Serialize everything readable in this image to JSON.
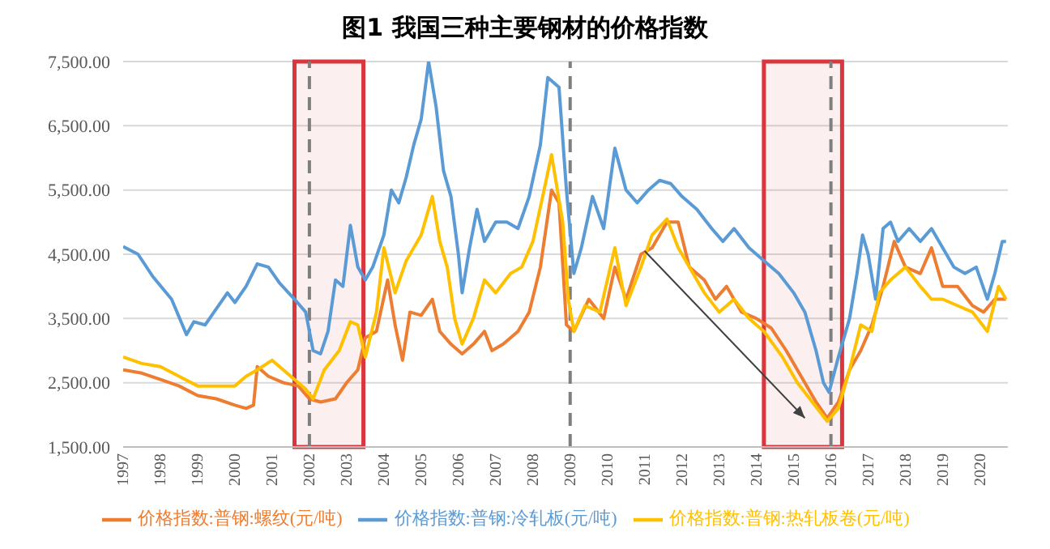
{
  "chart_data": {
    "type": "line",
    "title": "图1  我国三种主要钢材的价格指数",
    "xlim": [
      1997,
      2020.75
    ],
    "xticks": [
      1997,
      1998,
      1999,
      2000,
      2001,
      2002,
      2003,
      2004,
      2005,
      2006,
      2007,
      2008,
      2009,
      2010,
      2011,
      2012,
      2013,
      2014,
      2015,
      2016,
      2017,
      2018,
      2019,
      2020
    ],
    "ylim": [
      1500,
      7500
    ],
    "yticks": [
      {
        "value": 1500,
        "label": "1,500.00"
      },
      {
        "value": 2500,
        "label": "2,500.00"
      },
      {
        "value": 3500,
        "label": "3,500.00"
      },
      {
        "value": 4500,
        "label": "4,500.00"
      },
      {
        "value": 5500,
        "label": "5,500.00"
      },
      {
        "value": 6500,
        "label": "6,500.00"
      },
      {
        "value": 7500,
        "label": "7,500.00"
      }
    ],
    "grid": "y",
    "legend": "bottom",
    "marker": "none",
    "line_style": "solid",
    "series": [
      {
        "name": "价格指数:普钢:螺纹(元/吨)",
        "color": "#ed7d31",
        "x": [
          1997.0,
          1997.5,
          1998,
          1998.5,
          1999,
          1999.5,
          2000,
          2000.3,
          2000.5,
          2000.6,
          2000.9,
          2001.3,
          2001.7,
          2002.0,
          2002.3,
          2002.7,
          2003.0,
          2003.3,
          2003.5,
          2003.8,
          2004.1,
          2004.3,
          2004.5,
          2004.7,
          2005.0,
          2005.3,
          2005.5,
          2005.8,
          2006.1,
          2006.4,
          2006.7,
          2006.9,
          2007.2,
          2007.6,
          2007.9,
          2008.2,
          2008.5,
          2008.7,
          2008.9,
          2009.1,
          2009.5,
          2009.9,
          2010.2,
          2010.5,
          2010.9,
          2011.2,
          2011.6,
          2011.9,
          2012.2,
          2012.6,
          2012.9,
          2013.2,
          2013.6,
          2014.0,
          2014.4,
          2014.8,
          2015.2,
          2015.6,
          2015.9,
          2016.2,
          2016.5,
          2016.8,
          2017.1,
          2017.4,
          2017.7,
          2018.0,
          2018.4,
          2018.7,
          2019.0,
          2019.4,
          2019.8,
          2020.1,
          2020.4,
          2020.7
        ],
        "values": [
          2700,
          2650,
          2550,
          2450,
          2300,
          2250,
          2150,
          2100,
          2150,
          2750,
          2600,
          2500,
          2450,
          2250,
          2200,
          2250,
          2500,
          2700,
          3200,
          3300,
          4100,
          3400,
          2850,
          3600,
          3550,
          3800,
          3300,
          3100,
          2950,
          3100,
          3300,
          3000,
          3100,
          3300,
          3600,
          4300,
          5500,
          5300,
          3400,
          3300,
          3800,
          3500,
          4300,
          3800,
          4500,
          4600,
          5000,
          5000,
          4300,
          4100,
          3800,
          4000,
          3600,
          3500,
          3350,
          3000,
          2600,
          2200,
          1950,
          2200,
          2700,
          3000,
          3400,
          4000,
          4700,
          4300,
          4200,
          4600,
          4000,
          4000,
          3700,
          3600,
          3800,
          3800
        ]
      },
      {
        "name": "价格指数:普钢:冷轧板(元/吨)",
        "color": "#5b9bd5",
        "x": [
          1997.0,
          1997.4,
          1997.8,
          1998.3,
          1998.7,
          1998.9,
          1999.2,
          1999.5,
          1999.8,
          2000.0,
          2000.3,
          2000.6,
          2000.9,
          2001.2,
          2001.6,
          2001.9,
          2002.1,
          2002.3,
          2002.5,
          2002.7,
          2002.9,
          2003.1,
          2003.3,
          2003.5,
          2003.7,
          2004.0,
          2004.2,
          2004.4,
          2004.6,
          2004.8,
          2005.0,
          2005.2,
          2005.4,
          2005.6,
          2005.8,
          2006.0,
          2006.1,
          2006.3,
          2006.5,
          2006.7,
          2007.0,
          2007.3,
          2007.6,
          2007.9,
          2008.2,
          2008.4,
          2008.7,
          2008.9,
          2009.1,
          2009.3,
          2009.6,
          2009.9,
          2010.2,
          2010.5,
          2010.8,
          2011.1,
          2011.4,
          2011.7,
          2012.0,
          2012.4,
          2012.8,
          2013.1,
          2013.4,
          2013.8,
          2014.2,
          2014.6,
          2015.0,
          2015.3,
          2015.6,
          2015.8,
          2015.95,
          2016.2,
          2016.5,
          2016.7,
          2016.85,
          2017.0,
          2017.2,
          2017.4,
          2017.6,
          2017.8,
          2018.1,
          2018.4,
          2018.7,
          2019.0,
          2019.3,
          2019.6,
          2019.9,
          2020.2,
          2020.4,
          2020.6,
          2020.7
        ],
        "values": [
          4620,
          4500,
          4150,
          3800,
          3250,
          3450,
          3400,
          3650,
          3900,
          3750,
          4000,
          4350,
          4300,
          4050,
          3800,
          3600,
          3000,
          2950,
          3300,
          4100,
          4000,
          4950,
          4300,
          4100,
          4300,
          4800,
          5500,
          5300,
          5700,
          6200,
          6600,
          7500,
          6800,
          5800,
          5400,
          4500,
          3900,
          4600,
          5200,
          4700,
          5000,
          5000,
          4900,
          5400,
          6200,
          7250,
          7100,
          5500,
          4200,
          4600,
          5400,
          4900,
          6150,
          5500,
          5300,
          5500,
          5650,
          5600,
          5400,
          5200,
          4900,
          4700,
          4900,
          4600,
          4400,
          4200,
          3900,
          3600,
          3000,
          2500,
          2350,
          2900,
          3500,
          4200,
          4800,
          4500,
          3800,
          4900,
          5000,
          4700,
          4900,
          4700,
          4900,
          4600,
          4300,
          4200,
          4300,
          3800,
          4200,
          4700,
          4700
        ]
      },
      {
        "name": "价格指数:普钢:热轧板卷(元/吨)",
        "color": "#ffc000",
        "x": [
          1997.0,
          1997.5,
          1998,
          1998.5,
          1999,
          1999.5,
          2000,
          2000.3,
          2000.6,
          2001.0,
          2001.5,
          2001.9,
          2002.1,
          2002.4,
          2002.8,
          2003.1,
          2003.3,
          2003.5,
          2003.8,
          2004.0,
          2004.3,
          2004.6,
          2005.0,
          2005.3,
          2005.5,
          2005.7,
          2005.9,
          2006.1,
          2006.4,
          2006.7,
          2007.0,
          2007.4,
          2007.7,
          2008.0,
          2008.3,
          2008.5,
          2008.8,
          2008.95,
          2009.1,
          2009.4,
          2009.8,
          2010.2,
          2010.5,
          2010.9,
          2011.2,
          2011.6,
          2011.9,
          2012.3,
          2012.6,
          2013.0,
          2013.4,
          2013.8,
          2014.2,
          2014.7,
          2015.1,
          2015.5,
          2015.9,
          2016.2,
          2016.5,
          2016.8,
          2017.1,
          2017.3,
          2017.6,
          2018.0,
          2018.4,
          2018.7,
          2019.0,
          2019.4,
          2019.8,
          2020.2,
          2020.5,
          2020.7
        ],
        "values": [
          2900,
          2800,
          2750,
          2600,
          2450,
          2450,
          2450,
          2600,
          2700,
          2850,
          2600,
          2400,
          2250,
          2700,
          3000,
          3450,
          3400,
          2900,
          3600,
          4600,
          3900,
          4400,
          4800,
          5400,
          4700,
          4300,
          3500,
          3100,
          3500,
          4100,
          3900,
          4200,
          4300,
          4700,
          5500,
          6050,
          5000,
          3800,
          3300,
          3700,
          3600,
          4600,
          3700,
          4300,
          4800,
          5050,
          4600,
          4200,
          3900,
          3600,
          3800,
          3500,
          3300,
          2900,
          2500,
          2200,
          1900,
          2100,
          2700,
          3400,
          3300,
          3900,
          4100,
          4300,
          4000,
          3800,
          3800,
          3700,
          3600,
          3300,
          4000,
          3800
        ]
      }
    ],
    "ref_lines": [
      {
        "axis": "x",
        "value": 2002,
        "color": "#7f7f7f",
        "line_style": "dashed"
      },
      {
        "axis": "x",
        "value": 2009,
        "color": "#7f7f7f",
        "line_style": "dashed"
      },
      {
        "axis": "x",
        "value": 2016,
        "color": "#7f7f7f",
        "line_style": "dashed"
      }
    ],
    "bands": [
      {
        "axis": "x",
        "from": 2001.6,
        "to": 2003.45,
        "color": "#d9363e"
      },
      {
        "axis": "x",
        "from": 2014.2,
        "to": 2016.3,
        "color": "#d9363e"
      }
    ]
  }
}
